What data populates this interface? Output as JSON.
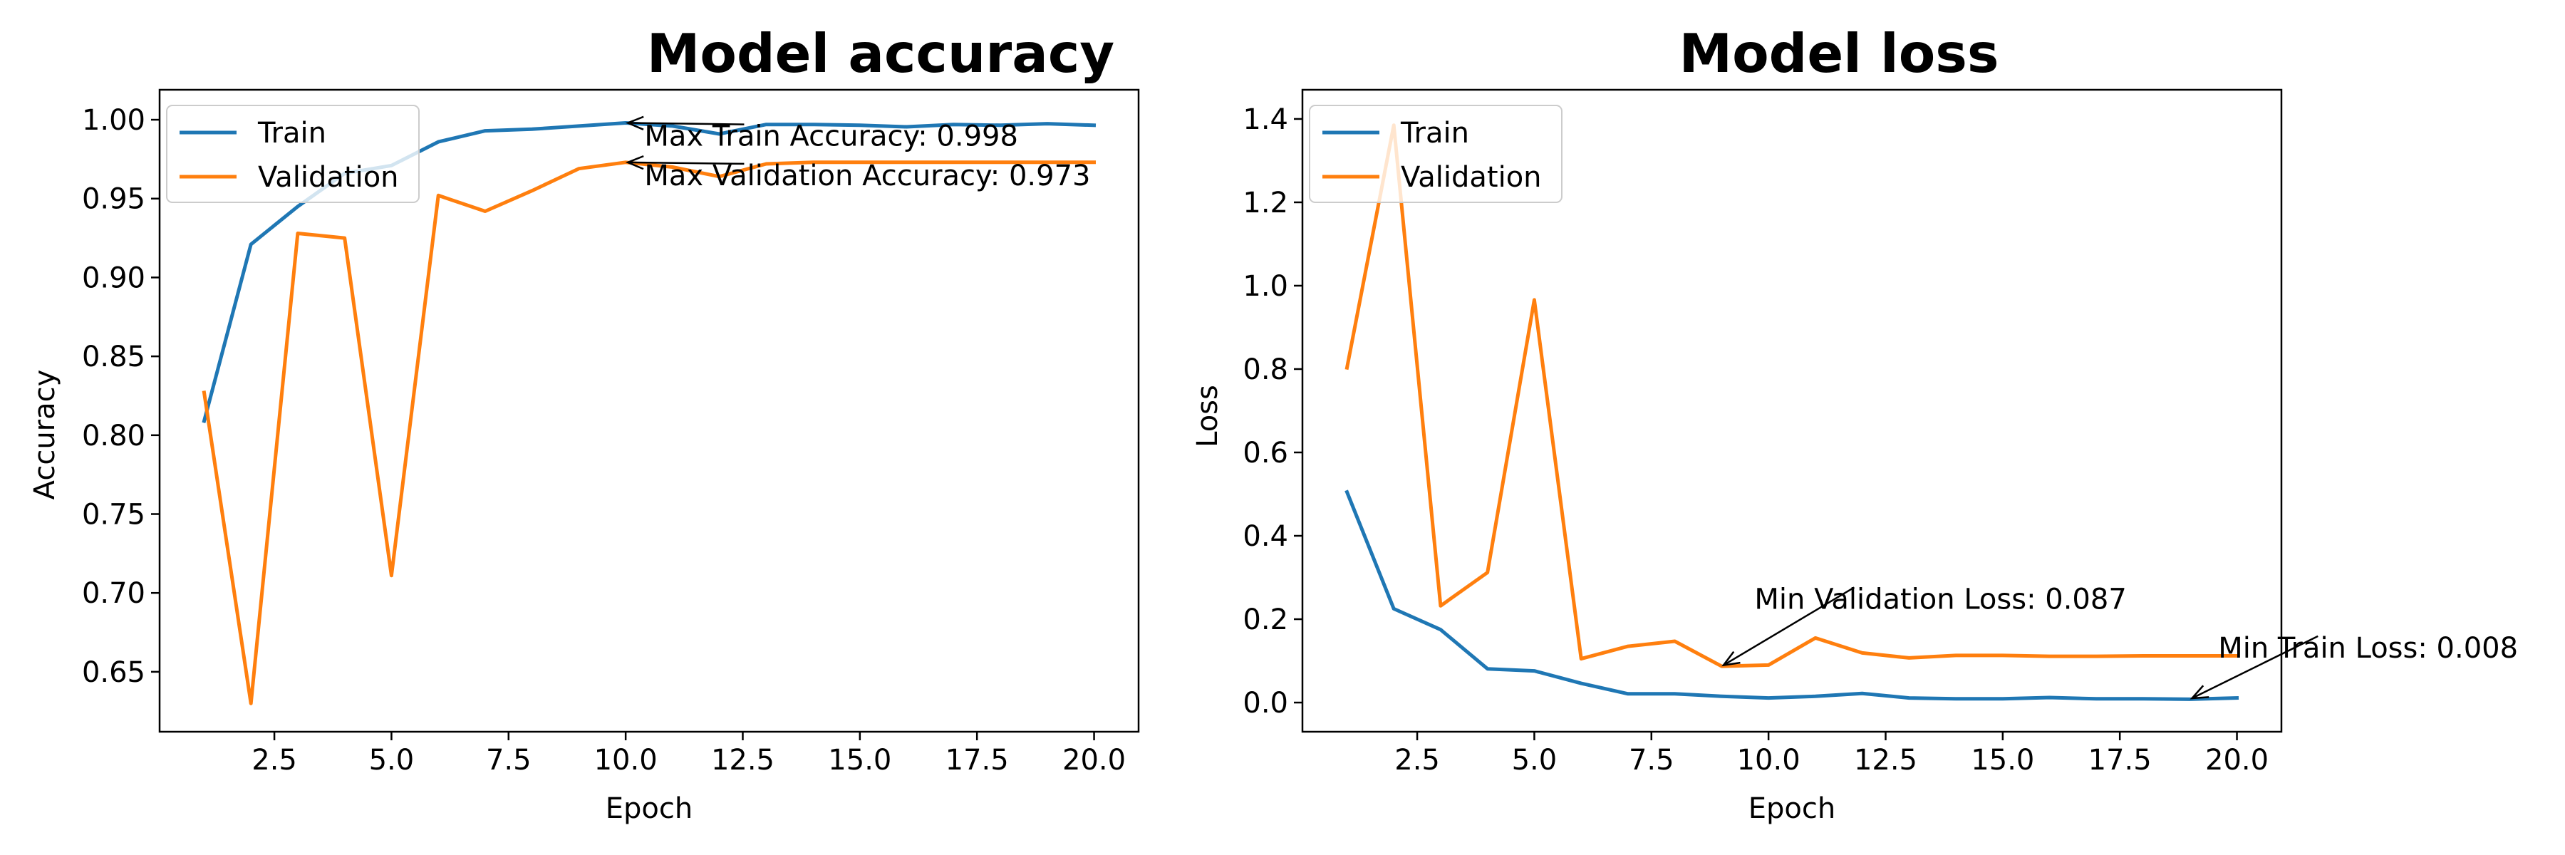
{
  "colors": {
    "train": "#1f77b4",
    "validation": "#ff7f0e"
  },
  "chart_data": [
    {
      "type": "line",
      "title": "Model accuracy",
      "xlabel": "Epoch",
      "ylabel": "Accuracy",
      "xlim": [
        0.05,
        20.95
      ],
      "ylim": [
        0.612,
        1.019
      ],
      "xticks": [
        2.5,
        5.0,
        7.5,
        10.0,
        12.5,
        15.0,
        17.5,
        20.0
      ],
      "xtick_labels": [
        "2.5",
        "5.0",
        "7.5",
        "10.0",
        "12.5",
        "15.0",
        "17.5",
        "20.0"
      ],
      "yticks": [
        0.65,
        0.7,
        0.75,
        0.8,
        0.85,
        0.9,
        0.95,
        1.0
      ],
      "ytick_labels": [
        "0.65",
        "0.70",
        "0.75",
        "0.80",
        "0.85",
        "0.90",
        "0.95",
        "1.00"
      ],
      "legend": "upper-left",
      "x": [
        1,
        2,
        3,
        4,
        5,
        6,
        7,
        8,
        9,
        10,
        11,
        12,
        13,
        14,
        15,
        16,
        17,
        18,
        19,
        20
      ],
      "series": [
        {
          "name": "Train",
          "color_key": "train",
          "values": [
            0.809,
            0.921,
            0.945,
            0.966,
            0.971,
            0.986,
            0.993,
            0.994,
            0.996,
            0.998,
            0.996,
            0.991,
            0.997,
            0.997,
            0.9965,
            0.9955,
            0.997,
            0.9965,
            0.9975,
            0.9965
          ]
        },
        {
          "name": "Validation",
          "color_key": "validation",
          "values": [
            0.827,
            0.63,
            0.928,
            0.925,
            0.711,
            0.952,
            0.942,
            0.955,
            0.969,
            0.973,
            0.97,
            0.964,
            0.972,
            0.973,
            0.973,
            0.973,
            0.973,
            0.973,
            0.973,
            0.973
          ]
        }
      ],
      "annotations": [
        {
          "text": "Max Train Accuracy: 0.998",
          "point": [
            10,
            0.998
          ],
          "text_pos": [
            10.4,
            0.9835
          ]
        },
        {
          "text": "Max Validation Accuracy: 0.973",
          "point": [
            10,
            0.973
          ],
          "text_pos": [
            10.4,
            0.9585
          ]
        }
      ]
    },
    {
      "type": "line",
      "title": "Model loss",
      "xlabel": "Epoch",
      "ylabel": "Loss",
      "xlim": [
        0.05,
        20.95
      ],
      "ylim": [
        -0.07,
        1.47
      ],
      "xticks": [
        2.5,
        5.0,
        7.5,
        10.0,
        12.5,
        15.0,
        17.5,
        20.0
      ],
      "xtick_labels": [
        "2.5",
        "5.0",
        "7.5",
        "10.0",
        "12.5",
        "15.0",
        "17.5",
        "20.0"
      ],
      "yticks": [
        0.0,
        0.2,
        0.4,
        0.6,
        0.8,
        1.0,
        1.2,
        1.4
      ],
      "ytick_labels": [
        "0.0",
        "0.2",
        "0.4",
        "0.6",
        "0.8",
        "1.0",
        "1.2",
        "1.4"
      ],
      "legend": "upper-left",
      "x": [
        1,
        2,
        3,
        4,
        5,
        6,
        7,
        8,
        9,
        10,
        11,
        12,
        13,
        14,
        15,
        16,
        17,
        18,
        19,
        20
      ],
      "series": [
        {
          "name": "Train",
          "color_key": "train",
          "values": [
            0.505,
            0.225,
            0.175,
            0.081,
            0.076,
            0.046,
            0.021,
            0.021,
            0.015,
            0.011,
            0.015,
            0.022,
            0.011,
            0.009,
            0.009,
            0.012,
            0.009,
            0.009,
            0.008,
            0.011
          ]
        },
        {
          "name": "Validation",
          "color_key": "validation",
          "values": [
            0.803,
            1.385,
            0.232,
            0.312,
            0.966,
            0.105,
            0.135,
            0.147,
            0.087,
            0.09,
            0.155,
            0.119,
            0.107,
            0.113,
            0.113,
            0.111,
            0.111,
            0.112,
            0.112,
            0.112
          ]
        }
      ],
      "annotations": [
        {
          "text": "Min Validation Loss: 0.087",
          "point": [
            9,
            0.087
          ],
          "text_pos": [
            9.7,
            0.225
          ]
        },
        {
          "text": "Min Train Loss: 0.008",
          "point": [
            19,
            0.008
          ],
          "text_pos": [
            19.6,
            0.108
          ]
        }
      ]
    }
  ]
}
